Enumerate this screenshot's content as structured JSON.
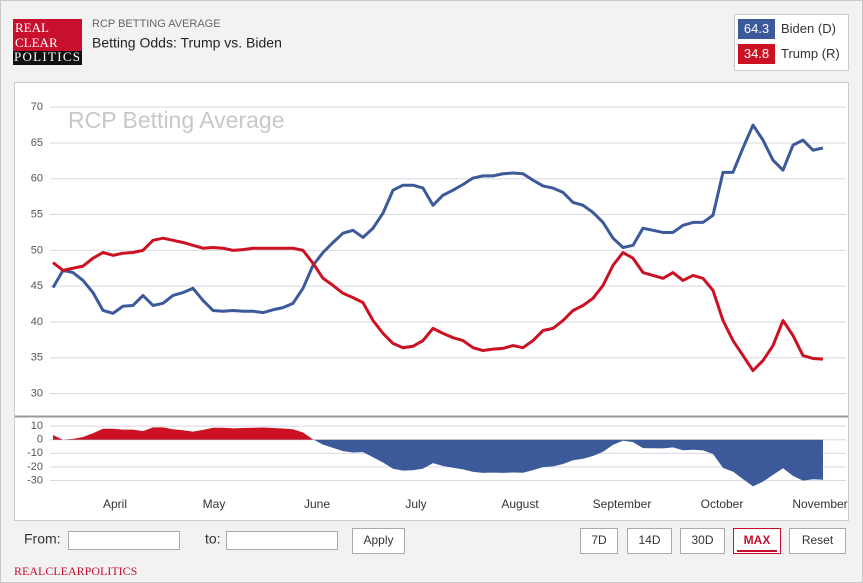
{
  "header": {
    "logo": [
      "REAL",
      "CLEAR",
      "POLITICS"
    ],
    "kicker": "RCP BETTING AVERAGE",
    "title": "Betting Odds: Trump vs. Biden"
  },
  "chart_data": [
    {
      "type": "line",
      "watermark": "RCP Betting Average",
      "ylim": [
        27,
        72.4
      ],
      "yticks": [
        30,
        35,
        40,
        45,
        50,
        55,
        60,
        65,
        70
      ],
      "grid": true,
      "series": [
        {
          "name": "Biden (D)",
          "color": "#3c5a99",
          "values": [
            44.8,
            47.2,
            46.9,
            45.8,
            44.1,
            41.6,
            41.2,
            42.2,
            42.3,
            43.7,
            42.3,
            42.6,
            43.7,
            44.1,
            44.7,
            43.0,
            41.6,
            41.5,
            41.6,
            41.5,
            41.5,
            41.3,
            41.7,
            42.0,
            42.6,
            44.7,
            47.9,
            49.7,
            51.1,
            52.4,
            52.8,
            51.8,
            53.1,
            55.2,
            58.4,
            59.1,
            59.1,
            58.7,
            56.3,
            57.7,
            58.4,
            59.2,
            60.1,
            60.4,
            60.4,
            60.7,
            60.8,
            60.7,
            59.8,
            59.0,
            58.7,
            58.1,
            56.7,
            56.3,
            55.3,
            53.9,
            51.7,
            50.4,
            50.7,
            53.1,
            52.8,
            52.5,
            52.5,
            53.5,
            53.9,
            53.9,
            54.9,
            60.9,
            60.9,
            64.3,
            67.5,
            65.4,
            62.6,
            61.2,
            64.7,
            65.4,
            64.0,
            64.3
          ]
        },
        {
          "name": "Trump (R)",
          "color": "#cc1122",
          "values": [
            48.3,
            47.2,
            47.5,
            47.8,
            48.9,
            49.7,
            49.3,
            49.6,
            49.7,
            50.0,
            51.4,
            51.7,
            51.4,
            51.1,
            50.7,
            50.3,
            50.4,
            50.3,
            50.0,
            50.1,
            50.3,
            50.3,
            50.3,
            50.3,
            50.3,
            50.0,
            48.2,
            46.1,
            45.1,
            44.0,
            43.4,
            42.7,
            40.2,
            38.4,
            37.0,
            36.4,
            36.6,
            37.4,
            39.1,
            38.4,
            37.8,
            37.4,
            36.4,
            36.0,
            36.2,
            36.3,
            36.7,
            36.4,
            37.4,
            38.8,
            39.1,
            40.2,
            41.6,
            42.3,
            43.3,
            45.1,
            47.9,
            49.7,
            48.9,
            46.9,
            46.5,
            46.1,
            46.9,
            45.8,
            46.5,
            46.1,
            44.4,
            40.2,
            37.4,
            35.3,
            33.2,
            34.6,
            36.7,
            40.2,
            38.1,
            35.3,
            34.9,
            34.8
          ]
        }
      ]
    },
    {
      "type": "area",
      "ylim": [
        -37,
        16
      ],
      "yticks": [
        10,
        0,
        -10,
        -20,
        -30
      ],
      "grid": true,
      "pos_color": "#cc1122",
      "neg_color": "#3c5a99",
      "values": [
        3.5,
        0,
        0.6,
        2.0,
        4.8,
        8.1,
        8.1,
        7.4,
        7.4,
        6.3,
        9.1,
        9.1,
        7.7,
        7.0,
        6.0,
        7.3,
        8.8,
        8.8,
        8.4,
        8.6,
        8.8,
        9.0,
        8.6,
        8.3,
        7.7,
        5.3,
        0.3,
        -3.6,
        -6.0,
        -8.4,
        -9.4,
        -9.1,
        -12.9,
        -16.8,
        -21.4,
        -22.7,
        -22.5,
        -21.3,
        -17.2,
        -19.3,
        -20.6,
        -21.8,
        -23.7,
        -24.4,
        -24.2,
        -24.4,
        -24.1,
        -24.3,
        -22.4,
        -20.2,
        -19.6,
        -17.9,
        -15.1,
        -14.0,
        -12.0,
        -8.8,
        -3.8,
        -0.7,
        -1.8,
        -6.2,
        -6.3,
        -6.4,
        -5.6,
        -7.7,
        -7.4,
        -7.8,
        -10.5,
        -20.7,
        -23.5,
        -29.0,
        -34.3,
        -30.8,
        -25.9,
        -21.0,
        -26.6,
        -30.1,
        -29.1,
        -29.5
      ],
      "xticks": [
        {
          "value": 6.2,
          "label": "April"
        },
        {
          "value": 16.1,
          "label": "May"
        },
        {
          "value": 26.4,
          "label": "June"
        },
        {
          "value": 36.3,
          "label": "July"
        },
        {
          "value": 46.7,
          "label": "August"
        },
        {
          "value": 56.9,
          "label": "September"
        },
        {
          "value": 66.9,
          "label": "October"
        },
        {
          "value": 76.7,
          "label": "November"
        }
      ]
    }
  ],
  "controls": {
    "from": "From:",
    "to": "to:",
    "apply": "Apply",
    "ranges": [
      "7D",
      "14D",
      "30D",
      "MAX",
      "Reset"
    ],
    "active": "MAX"
  },
  "footer": "REALCLEARPOLITICS"
}
